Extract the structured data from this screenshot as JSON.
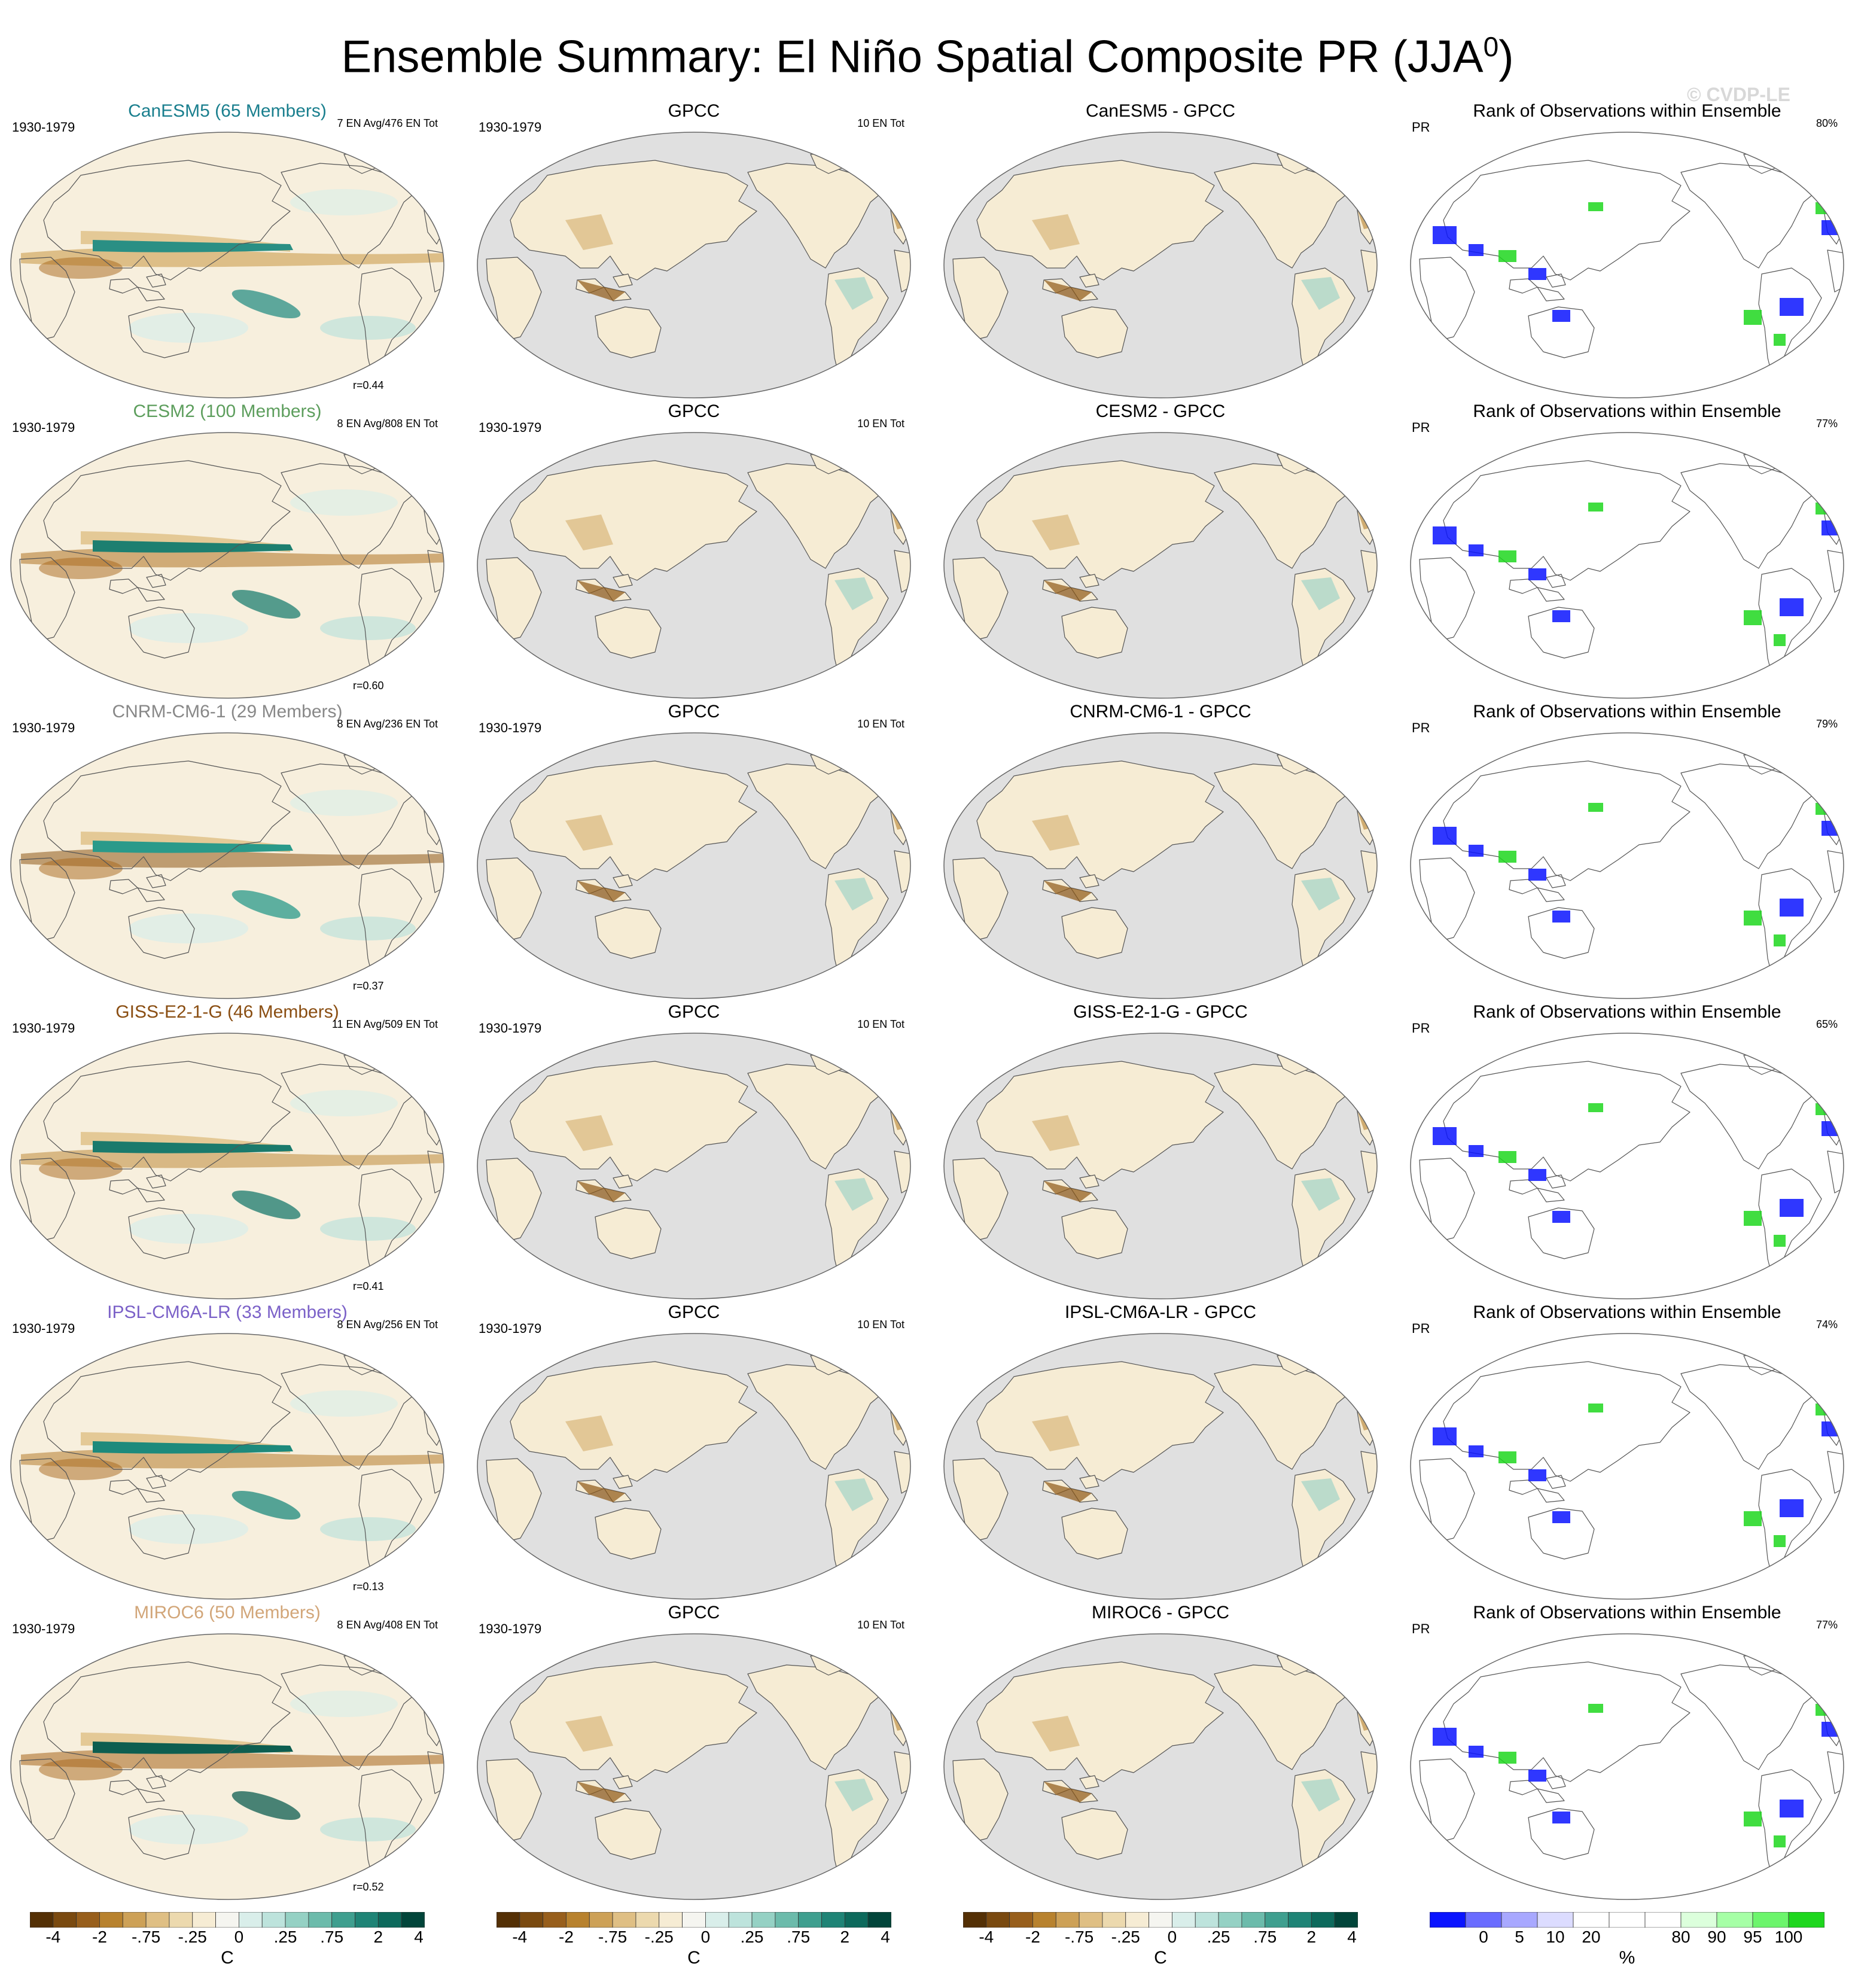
{
  "figure": {
    "title": "Ensemble Summary: El Niño Spatial Composite PR (JJA",
    "title_sup": "0",
    "title_close": ")",
    "watermark": "© CVDP-LE"
  },
  "rows": [
    {
      "model": "CanESM5 (65 Members)",
      "model_color": "#1a7f8e",
      "period": "1930-1979",
      "en_info": "7 EN Avg/476 EN Tot",
      "r": "r=0.44",
      "obs": "GPCC",
      "obs_en": "10 EN Tot",
      "diff": "CanESM5 - GPCC",
      "rank_title": "Rank of Observations within Ensemble",
      "rank_var": "PR",
      "rank_pct": "80%"
    },
    {
      "model": "CESM2 (100 Members)",
      "model_color": "#5d9e5d",
      "period": "1930-1979",
      "en_info": "8 EN Avg/808 EN Tot",
      "r": "r=0.60",
      "obs": "GPCC",
      "obs_en": "10 EN Tot",
      "diff": "CESM2 - GPCC",
      "rank_title": "Rank of Observations within Ensemble",
      "rank_var": "PR",
      "rank_pct": "77%"
    },
    {
      "model": "CNRM-CM6-1 (29 Members)",
      "model_color": "#888888",
      "period": "1930-1979",
      "en_info": "8 EN Avg/236 EN Tot",
      "r": "r=0.37",
      "obs": "GPCC",
      "obs_en": "10 EN Tot",
      "diff": "CNRM-CM6-1 - GPCC",
      "rank_title": "Rank of Observations within Ensemble",
      "rank_var": "PR",
      "rank_pct": "79%"
    },
    {
      "model": "GISS-E2-1-G (46 Members)",
      "model_color": "#8a4e12",
      "period": "1930-1979",
      "en_info": "11 EN Avg/509 EN Tot",
      "r": "r=0.41",
      "obs": "GPCC",
      "obs_en": "10 EN Tot",
      "diff": "GISS-E2-1-G - GPCC",
      "rank_title": "Rank of Observations within Ensemble",
      "rank_var": "PR",
      "rank_pct": "65%"
    },
    {
      "model": "IPSL-CM6A-LR (33 Members)",
      "model_color": "#7b61c8",
      "period": "1930-1979",
      "en_info": "8 EN Avg/256 EN Tot",
      "r": "r=0.13",
      "obs": "GPCC",
      "obs_en": "10 EN Tot",
      "diff": "IPSL-CM6A-LR - GPCC",
      "rank_title": "Rank of Observations within Ensemble",
      "rank_var": "PR",
      "rank_pct": "74%"
    },
    {
      "model": "MIROC6 (50 Members)",
      "model_color": "#d2a679",
      "period": "1930-1979",
      "en_info": "8 EN Avg/408 EN Tot",
      "r": "r=0.52",
      "obs": "GPCC",
      "obs_en": "10 EN Tot",
      "diff": "MIROC6 - GPCC",
      "rank_title": "Rank of Observations within Ensemble",
      "rank_var": "PR",
      "rank_pct": "77%"
    }
  ],
  "colorbars": {
    "anom": {
      "colors": [
        "#543005",
        "#7a4a10",
        "#985f1c",
        "#b8822e",
        "#cda157",
        "#dfbf84",
        "#ecd9ae",
        "#f6ecd4",
        "#f5f5f0",
        "#d9eeea",
        "#bde3dc",
        "#95d1c4",
        "#6cbbab",
        "#3f9f8f",
        "#1f8476",
        "#0d6a5c",
        "#01453a"
      ],
      "ticks": [
        "-4",
        "-2",
        "-.75",
        "-.25",
        "0",
        ".25",
        ".75",
        "2",
        "4"
      ],
      "unit": "C"
    },
    "rank": {
      "colors": [
        "#0a14ff",
        "#6a6cff",
        "#a8a8ff",
        "#dcdcff",
        "#ffffff",
        "#ffffff",
        "#ffffff",
        "#dcffdc",
        "#a6ffa6",
        "#6cf56c",
        "#1ed71e"
      ],
      "ticks": [
        "0",
        "5",
        "10",
        "20",
        "80",
        "90",
        "95",
        "100"
      ],
      "unit": "%"
    }
  }
}
